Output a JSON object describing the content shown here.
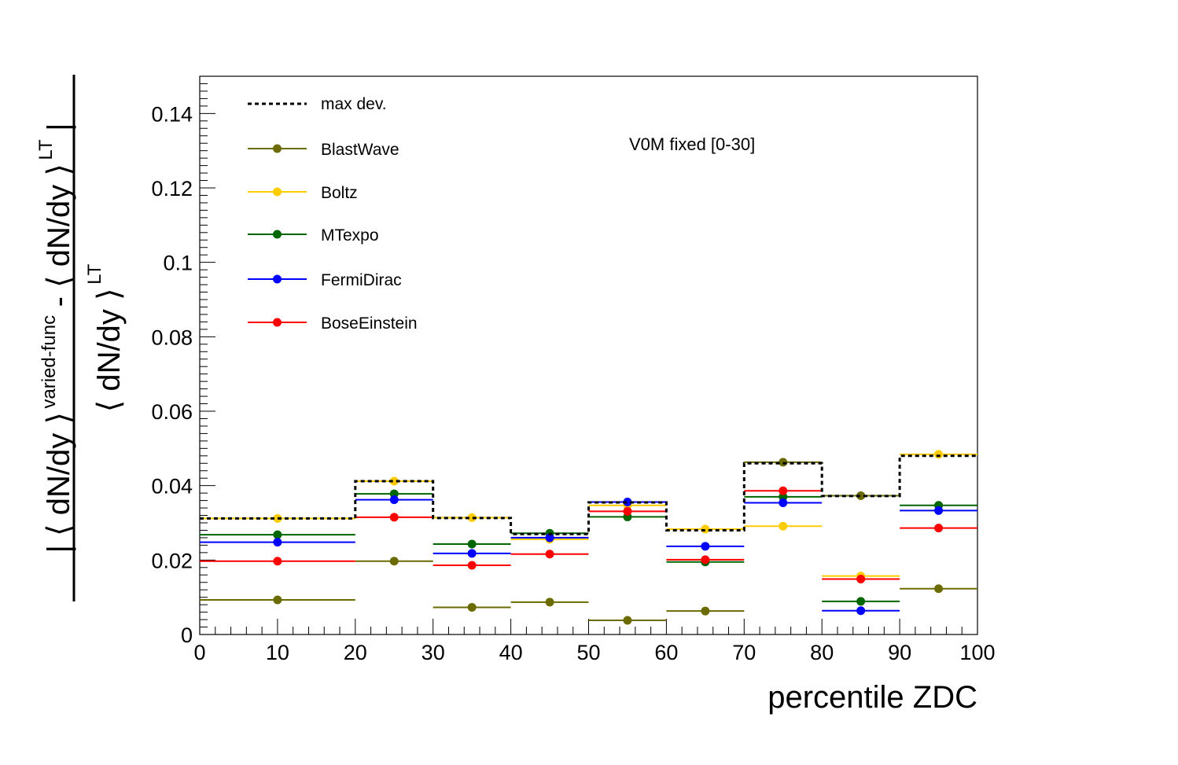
{
  "chart_data": {
    "type": "line",
    "title": "",
    "xlabel": "percentile ZDC",
    "ylabel": {
      "numerator_main": "| ⟨ dN/dy ⟩",
      "numerator_sup": "varied-func",
      "numerator_mid": "- ⟨ dN/dy ⟩",
      "numerator_sup2": "LT",
      "numerator_end": "|",
      "denominator_main": "⟨ dN/dy ⟩",
      "denominator_sup": "LT"
    },
    "xlim": [
      0,
      100
    ],
    "ylim": [
      0,
      0.15
    ],
    "x_ticks": [
      0,
      10,
      20,
      30,
      40,
      50,
      60,
      70,
      80,
      90,
      100
    ],
    "x_tick_labels": [
      "0",
      "10",
      "20",
      "30",
      "40",
      "50",
      "60",
      "70",
      "80",
      "90",
      "100"
    ],
    "y_ticks": [
      0,
      0.02,
      0.04,
      0.06,
      0.08,
      0.1,
      0.12,
      0.14
    ],
    "y_tick_labels": [
      "0",
      "0.02",
      "0.04",
      "0.06",
      "0.08",
      "0.1",
      "0.12",
      "0.14"
    ],
    "bin_edges": [
      0,
      20,
      30,
      40,
      50,
      60,
      70,
      80,
      90,
      100
    ],
    "annotation": "V0M fixed [0-30]",
    "legend_position": "top-left",
    "max_dev": {
      "name": "max dev.",
      "color": "#000000",
      "values": [
        0.0312,
        0.0412,
        0.0313,
        0.027,
        0.0355,
        0.028,
        0.046,
        0.0372,
        0.048
      ]
    },
    "series": [
      {
        "name": "BlastWave",
        "color": "#6b6b00",
        "values": [
          0.0093,
          0.0197,
          0.0073,
          0.0087,
          0.0038,
          0.0063,
          0.0463,
          0.0373,
          0.0123
        ]
      },
      {
        "name": "Boltz",
        "color": "#ffcc00",
        "values": [
          0.0312,
          0.0412,
          0.0314,
          0.0256,
          0.0347,
          0.0283,
          0.0291,
          0.0157,
          0.0484
        ]
      },
      {
        "name": "MTexpo",
        "color": "#006600",
        "values": [
          0.0268,
          0.0378,
          0.0243,
          0.0272,
          0.0316,
          0.0195,
          0.037,
          0.0089,
          0.0347
        ]
      },
      {
        "name": "FermiDirac",
        "color": "#0000ff",
        "values": [
          0.0248,
          0.0362,
          0.0218,
          0.026,
          0.0356,
          0.0237,
          0.0354,
          0.0064,
          0.0333
        ]
      },
      {
        "name": "BoseEinstein",
        "color": "#ff0000",
        "values": [
          0.0197,
          0.0315,
          0.0186,
          0.0216,
          0.0331,
          0.0201,
          0.0386,
          0.0149,
          0.0286
        ]
      }
    ]
  }
}
